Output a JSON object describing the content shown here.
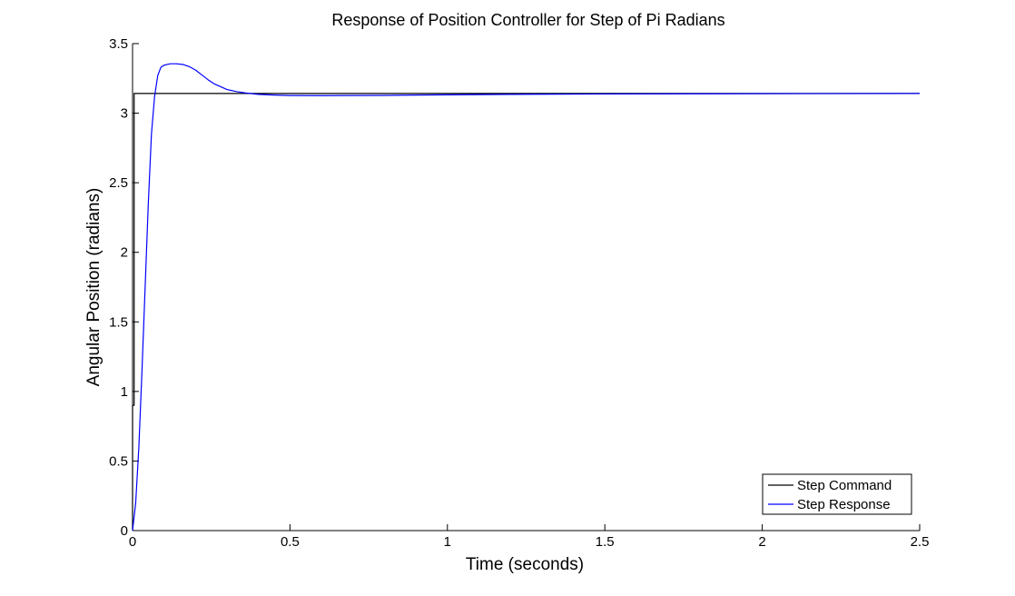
{
  "chart_data": {
    "type": "line",
    "title": "Response of Position Controller for Step of Pi Radians",
    "xlabel": "Time (seconds)",
    "ylabel": "Angular Position (radians)",
    "xlim": [
      0,
      2.5
    ],
    "ylim": [
      0,
      3.5
    ],
    "xticks": [
      0,
      0.5,
      1,
      1.5,
      2,
      2.5
    ],
    "xtick_labels": [
      "0",
      "0.5",
      "1",
      "1.5",
      "2",
      "2.5"
    ],
    "yticks": [
      0,
      0.5,
      1,
      1.5,
      2,
      2.5,
      3,
      3.5
    ],
    "ytick_labels": [
      "0",
      "0.5",
      "1",
      "1.5",
      "2",
      "2.5",
      "3",
      "3.5"
    ],
    "grid": false,
    "legend_position": "bottom-right",
    "series": [
      {
        "name": "Step Command",
        "color": "#000000",
        "x": [
          0,
          0,
          0.005,
          0.005,
          2.5
        ],
        "y": [
          0,
          0.9,
          0.9,
          3.1416,
          3.1416
        ]
      },
      {
        "name": "Step Response",
        "color": "#0000ff",
        "x": [
          0,
          0.01,
          0.02,
          0.03,
          0.04,
          0.05,
          0.06,
          0.07,
          0.08,
          0.09,
          0.1,
          0.11,
          0.12,
          0.14,
          0.16,
          0.18,
          0.2,
          0.22,
          0.24,
          0.26,
          0.28,
          0.3,
          0.33,
          0.36,
          0.4,
          0.45,
          0.5,
          0.6,
          0.7,
          0.8,
          0.9,
          1.0,
          1.2,
          1.5,
          2.0,
          2.5
        ],
        "y": [
          0,
          0.2,
          0.6,
          1.15,
          1.75,
          2.35,
          2.85,
          3.12,
          3.27,
          3.33,
          3.345,
          3.35,
          3.355,
          3.355,
          3.35,
          3.335,
          3.31,
          3.275,
          3.24,
          3.21,
          3.19,
          3.17,
          3.155,
          3.145,
          3.135,
          3.13,
          3.127,
          3.126,
          3.127,
          3.128,
          3.13,
          3.132,
          3.135,
          3.138,
          3.14,
          3.1416
        ]
      }
    ]
  }
}
